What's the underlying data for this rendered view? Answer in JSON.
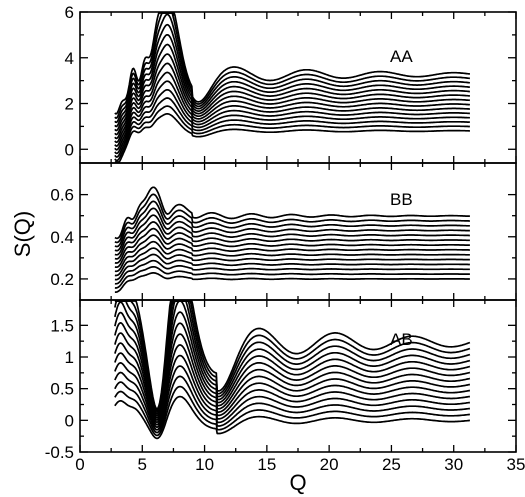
{
  "chart_data": {
    "type": "line",
    "title": "",
    "xlabel": "Q",
    "ylabel": "S(Q)",
    "xlim": [
      0,
      35
    ],
    "xticks": [
      0,
      5,
      10,
      15,
      20,
      25,
      30,
      35
    ],
    "xtick_labels": [
      "0",
      "5",
      "10",
      "15",
      "20",
      "25",
      "30",
      "35"
    ],
    "grid": false,
    "legend": "none",
    "curve_color": "#000000",
    "panels": [
      {
        "label": "AA",
        "ylim": [
          -0.6,
          6
        ],
        "yticks": [
          0,
          2,
          4,
          6
        ],
        "ytick_labels": [
          "0",
          "2",
          "4",
          "6"
        ],
        "curves": 14,
        "q_range": [
          2.8,
          31.3
        ],
        "baseline_start": 0.8,
        "baseline_step": 0.19,
        "first_peak": {
          "q": 7.0,
          "top_curve_value": 5.0
        },
        "plateau_top": 3.2
      },
      {
        "label": "BB",
        "ylim": [
          0.1,
          0.75
        ],
        "yticks": [
          0.2,
          0.4,
          0.6
        ],
        "ytick_labels": [
          "0.2",
          "0.4",
          "0.6"
        ],
        "curves": 14,
        "q_range": [
          2.8,
          31.3
        ],
        "baseline_start": 0.2,
        "baseline_step": 0.023,
        "first_peak": {
          "q": 5.9,
          "top_curve_value": 0.63
        },
        "plateau_top": 0.5
      },
      {
        "label": "AB",
        "ylim": [
          -0.5,
          1.9
        ],
        "yticks": [
          -0.5,
          0,
          0.5,
          1,
          1.5
        ],
        "ytick_labels": [
          "-0.5",
          "0",
          "0.5",
          "1",
          "1.5"
        ],
        "curves": 14,
        "q_range": [
          2.8,
          31.3
        ],
        "baseline_start": 0.0,
        "baseline_step": 0.095,
        "first_peak": {
          "q": 7.9,
          "top_curve_value": 1.65
        },
        "plateau_top": 1.25
      }
    ]
  }
}
